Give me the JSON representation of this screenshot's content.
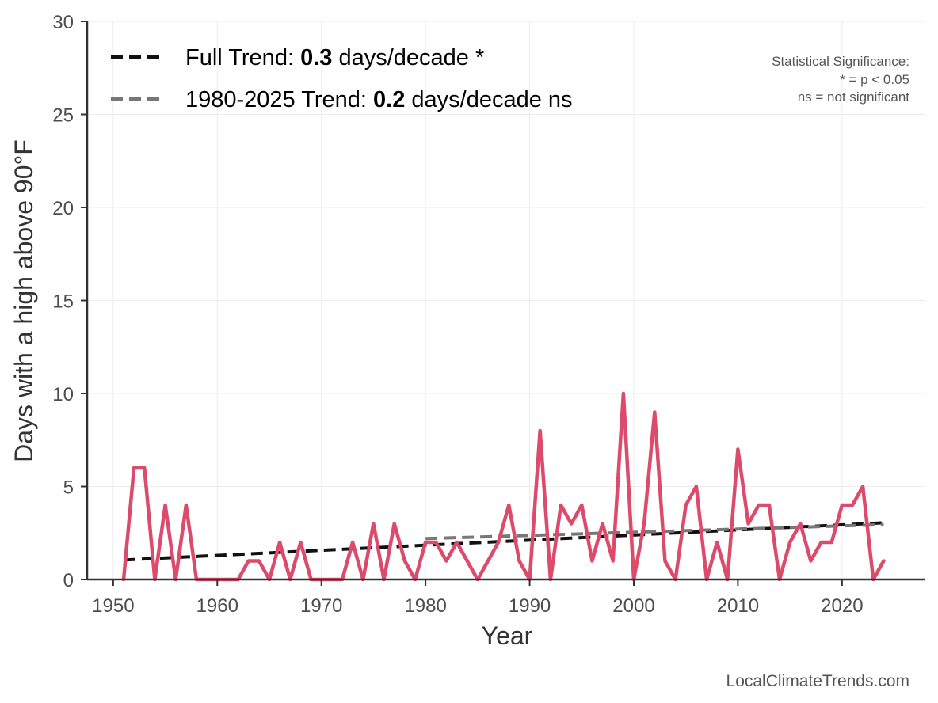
{
  "chart_data": {
    "type": "line",
    "xlabel": "Year",
    "ylabel": "Days with a high above 90°F",
    "xlim": [
      1947.5,
      2028
    ],
    "ylim": [
      0,
      30
    ],
    "x_ticks": [
      1950,
      1960,
      1970,
      1980,
      1990,
      2000,
      2010,
      2020
    ],
    "y_ticks": [
      0,
      5,
      10,
      15,
      20,
      25,
      30
    ],
    "grid": true,
    "legend_position": "top-left",
    "x": [
      1951,
      1952,
      1953,
      1954,
      1955,
      1956,
      1957,
      1958,
      1959,
      1960,
      1961,
      1962,
      1963,
      1964,
      1965,
      1966,
      1967,
      1968,
      1969,
      1970,
      1971,
      1972,
      1973,
      1974,
      1975,
      1976,
      1977,
      1978,
      1979,
      1980,
      1981,
      1982,
      1983,
      1984,
      1985,
      1986,
      1987,
      1988,
      1989,
      1990,
      1991,
      1992,
      1993,
      1994,
      1995,
      1996,
      1997,
      1998,
      1999,
      2000,
      2001,
      2002,
      2003,
      2004,
      2005,
      2006,
      2007,
      2008,
      2009,
      2010,
      2011,
      2012,
      2013,
      2014,
      2015,
      2016,
      2017,
      2018,
      2019,
      2020,
      2021,
      2022,
      2023,
      2024
    ],
    "series": [
      {
        "color": "#dc4b6b",
        "values": [
          0,
          6,
          6,
          0,
          4,
          0,
          4,
          0,
          0,
          0,
          0,
          0,
          1,
          1,
          0,
          2,
          0,
          2,
          0,
          0,
          0,
          0,
          2,
          0,
          3,
          0,
          3,
          1,
          0,
          2,
          2,
          1,
          2,
          1,
          0,
          1,
          2,
          4,
          1,
          0,
          8,
          0,
          4,
          3,
          4,
          1,
          3,
          1,
          10,
          0,
          3,
          9,
          1,
          0,
          4,
          5,
          0,
          2,
          0,
          7,
          3,
          4,
          4,
          0,
          2,
          3,
          1,
          2,
          2,
          4,
          4,
          5,
          0,
          1
        ]
      }
    ],
    "trend_lines": [
      {
        "name": "Full Trend",
        "label_prefix": "Full Trend: ",
        "value": "0.3",
        "label_suffix": " days/decade *",
        "x": [
          1951,
          2024
        ],
        "y": [
          1.05,
          3.05
        ],
        "color": "#111111"
      },
      {
        "name": "1980-2025 Trend",
        "label_prefix": "1980-2025 Trend: ",
        "value": "0.2",
        "label_suffix": " days/decade ns",
        "x": [
          1980,
          2024
        ],
        "y": [
          2.2,
          2.95
        ],
        "color": "#777777"
      }
    ],
    "note_lines": [
      "Statistical Significance:",
      "* = p < 0.05",
      "ns = not significant"
    ],
    "credit": "LocalClimateTrends.com"
  }
}
